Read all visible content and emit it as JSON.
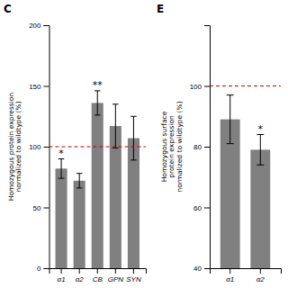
{
  "chart_data": [
    {
      "type": "bar",
      "title": "C",
      "categories": [
        "α1",
        "α2",
        "CB",
        "GPN",
        "SYN"
      ],
      "values": [
        82,
        72,
        136,
        117,
        107
      ],
      "errors": [
        8,
        6,
        10,
        18,
        18
      ],
      "color": "#808080",
      "y_label": "Homozygous protein expression\nnormalized to wildtype (%)",
      "ylim": [
        0,
        200
      ],
      "yticks": [
        0,
        50,
        100,
        150,
        200
      ],
      "reference_line": {
        "y": 100,
        "color": "#cc0000",
        "line_style": "dashed"
      },
      "annotations": [
        {
          "text": "*",
          "category": "α1"
        },
        {
          "text": "**",
          "category": "CB"
        }
      ],
      "grid": false
    },
    {
      "type": "bar",
      "title": "E",
      "categories": [
        "α1",
        "α2"
      ],
      "values": [
        89,
        79
      ],
      "errors": [
        8,
        5
      ],
      "color": "#808080",
      "y_label": "Homozygous surface\nprotein expression\nnormalized to wildtype (%)",
      "ylim": [
        40,
        120
      ],
      "yticks": [
        40,
        60,
        80,
        100
      ],
      "reference_line": {
        "y": 100,
        "color": "#cc0000",
        "line_style": "dashed"
      },
      "annotations": [
        {
          "text": "*",
          "category": "α2"
        }
      ],
      "grid": false
    }
  ]
}
